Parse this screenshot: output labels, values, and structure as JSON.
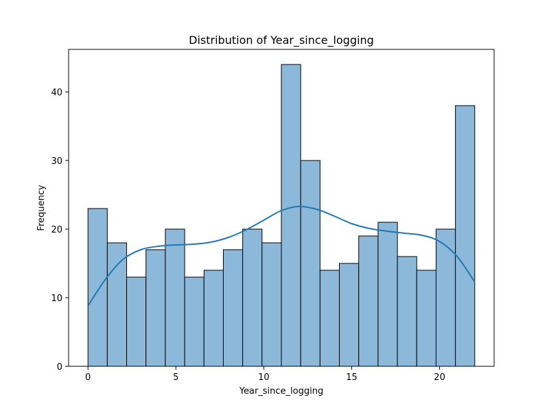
{
  "chart_data": {
    "type": "bar",
    "title": "Distribution of Year_since_logging",
    "xlabel": "Year_since_logging",
    "ylabel": "Frequency",
    "bin_edges": [
      0,
      1.1,
      2.2,
      3.3,
      4.4,
      5.5,
      6.6,
      7.7,
      8.8,
      9.9,
      11,
      12.1,
      13.2,
      14.3,
      15.4,
      16.5,
      17.6,
      18.7,
      19.8,
      20.9,
      22
    ],
    "values": [
      23,
      18,
      13,
      17,
      20,
      13,
      14,
      17,
      20,
      18,
      44,
      30,
      14,
      15,
      19,
      21,
      16,
      14,
      20,
      38
    ],
    "xlim": [
      -1.1,
      23.1
    ],
    "ylim": [
      0,
      46.2
    ],
    "xticks": [
      0,
      5,
      10,
      15,
      20
    ],
    "yticks": [
      0,
      10,
      20,
      30,
      40
    ],
    "kde": {
      "x": [
        0,
        1,
        2,
        3,
        4,
        5,
        6,
        7,
        8,
        9,
        10,
        11,
        12,
        13,
        14,
        15,
        16,
        17,
        18,
        19,
        20,
        21,
        22
      ],
      "y": [
        8.8,
        12.7,
        15.6,
        17.0,
        17.5,
        17.7,
        17.8,
        18.1,
        18.8,
        19.9,
        21.3,
        22.7,
        23.3,
        22.9,
        21.9,
        20.8,
        20.1,
        19.7,
        19.4,
        19.1,
        18.2,
        16.0,
        12.3
      ]
    },
    "grid": false,
    "legend": "none",
    "colors": {
      "bar_fill": "#8cb8d9",
      "bar_edge": "#000000",
      "kde_line": "#1f77b4"
    }
  }
}
